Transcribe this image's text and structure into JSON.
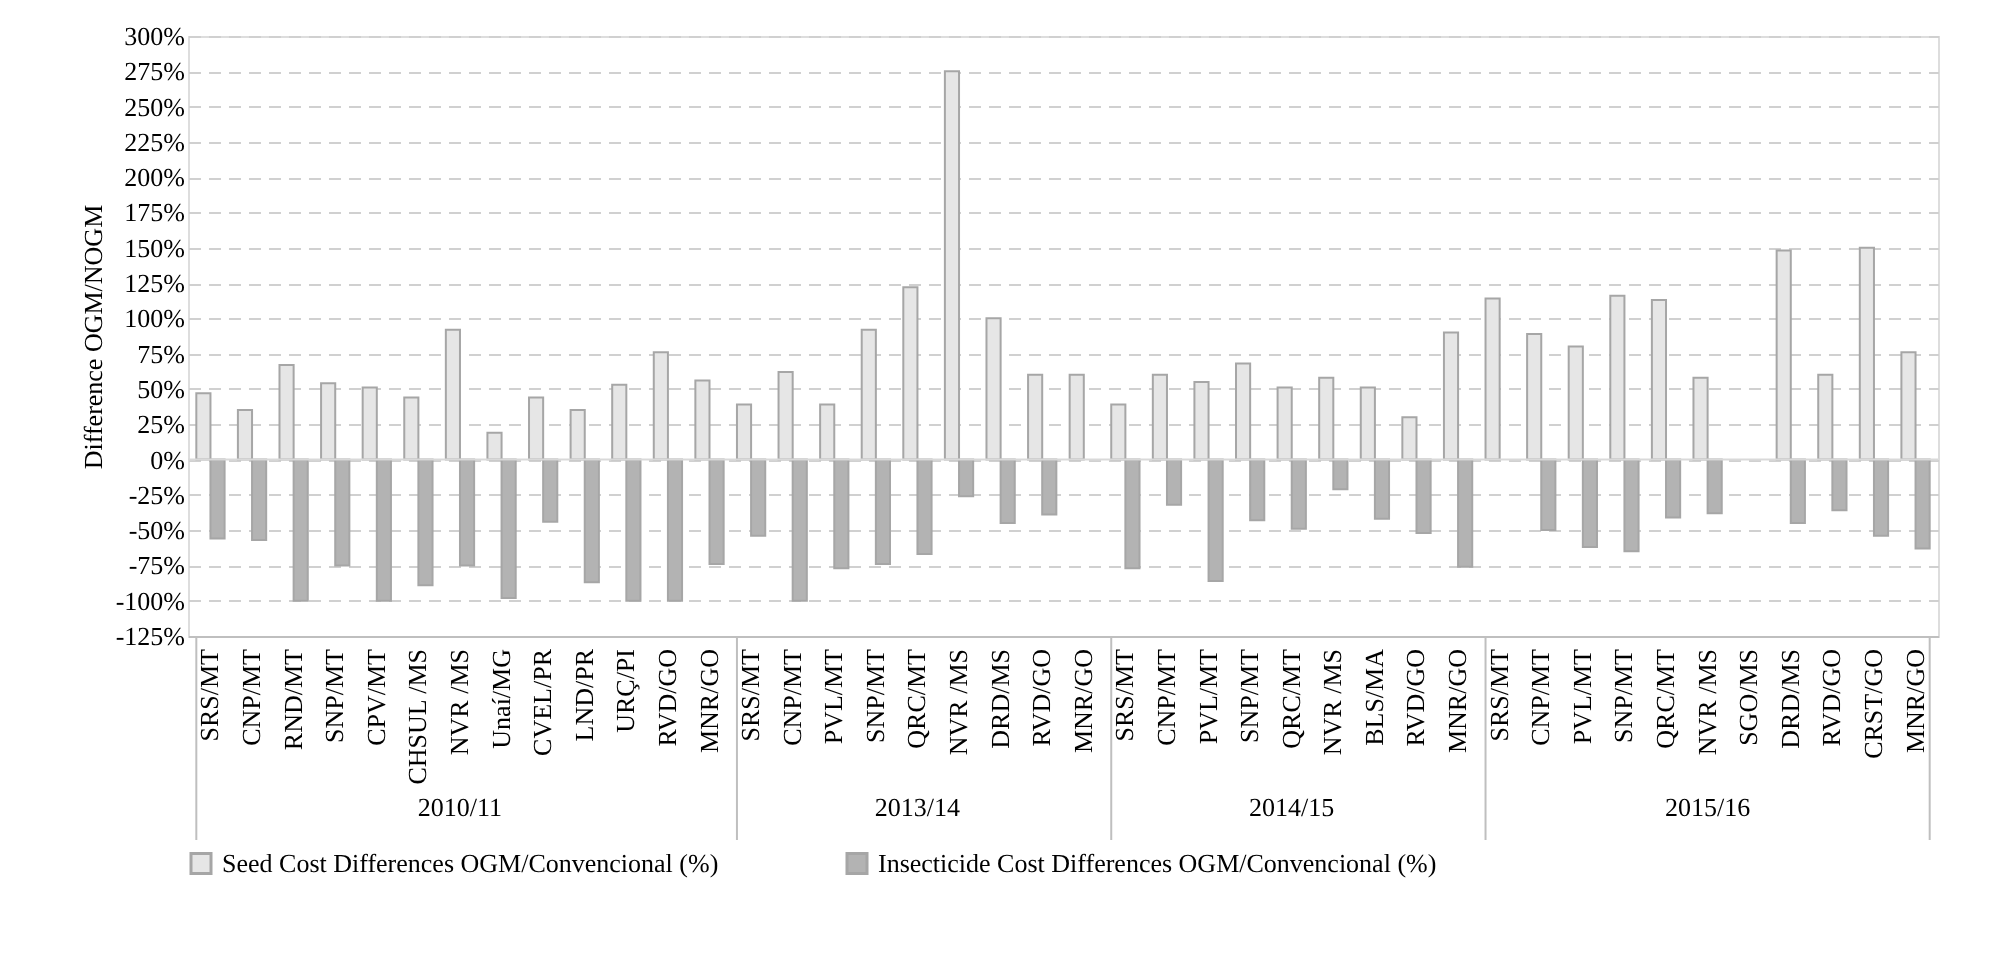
{
  "chart_data": {
    "type": "bar",
    "ylabel": "Difference OGM/NOGM",
    "categories": [
      "SRS/MT",
      "CNP/MT",
      "RND/MT",
      "SNP/MT",
      "CPV/MT",
      "CHSUL /MS",
      "NVR /MS",
      "Unaí/MG",
      "CVEL/PR",
      "LND/PR",
      "URÇ/PI",
      "RVD/GO",
      "MNR/GO",
      "SRS/MT",
      "CNP/MT",
      "PVL/MT",
      "SNP/MT",
      "QRC/MT",
      "NVR /MS",
      "DRD/MS",
      "RVD/GO",
      "MNR/GO",
      "SRS/MT",
      "CNP/MT",
      "PVL/MT",
      "SNP/MT",
      "QRC/MT",
      "NVR /MS",
      "BLS/MA",
      "RVD/GO",
      "MNR/GO",
      "SRS/MT",
      "CNP/MT",
      "PVL/MT",
      "SNP/MT",
      "QRC/MT",
      "NVR /MS",
      "SGO/MS",
      "DRD/MS",
      "RVD/GO",
      "CRST/GO",
      "MNR/GO"
    ],
    "series": [
      {
        "name": "Seed Cost Differences OGM/Convencional (%)",
        "color": "#e6e6e6",
        "values": [
          47,
          35,
          67,
          54,
          51,
          44,
          92,
          19,
          44,
          35,
          53,
          76,
          56,
          39,
          62,
          39,
          92,
          122,
          275,
          100,
          60,
          60,
          39,
          60,
          55,
          68,
          51,
          58,
          51,
          30,
          90,
          114,
          89,
          80,
          116,
          113,
          58,
          null,
          148,
          60,
          150,
          76
        ]
      },
      {
        "name": "Insecticide Cost Differences OGM/Convencional (%)",
        "color": "#b3b3b3",
        "values": [
          -56,
          -57,
          -100,
          -75,
          -100,
          -89,
          -75,
          -98,
          -44,
          -87,
          -100,
          -100,
          -74,
          -54,
          -100,
          -77,
          -74,
          -67,
          -26,
          -45,
          -39,
          null,
          -77,
          -32,
          -86,
          -43,
          -49,
          -21,
          -42,
          -52,
          -76,
          null,
          -50,
          -62,
          -65,
          -41,
          -38,
          null,
          -45,
          -36,
          -54,
          -63
        ]
      }
    ],
    "ylim": [
      -125,
      300
    ],
    "yticks": [
      {
        "value": -125,
        "label": "-125%"
      },
      {
        "value": -100,
        "label": "-100%"
      },
      {
        "value": -75,
        "label": "-75%"
      },
      {
        "value": -50,
        "label": "-50%"
      },
      {
        "value": -25,
        "label": "-25%"
      },
      {
        "value": 0,
        "label": "0%"
      },
      {
        "value": 25,
        "label": "25%"
      },
      {
        "value": 50,
        "label": "50%"
      },
      {
        "value": 75,
        "label": "75%"
      },
      {
        "value": 100,
        "label": "100%"
      },
      {
        "value": 125,
        "label": "125%"
      },
      {
        "value": 150,
        "label": "150%"
      },
      {
        "value": 175,
        "label": "175%"
      },
      {
        "value": 200,
        "label": "200%"
      },
      {
        "value": 225,
        "label": "225%"
      },
      {
        "value": 250,
        "label": "250%"
      },
      {
        "value": 275,
        "label": "275%"
      },
      {
        "value": 300,
        "label": "300%"
      }
    ],
    "grid": "y",
    "legend": "bottom",
    "annotations": [
      "2010/11",
      "2013/14",
      "2014/15",
      "2015/16"
    ]
  }
}
